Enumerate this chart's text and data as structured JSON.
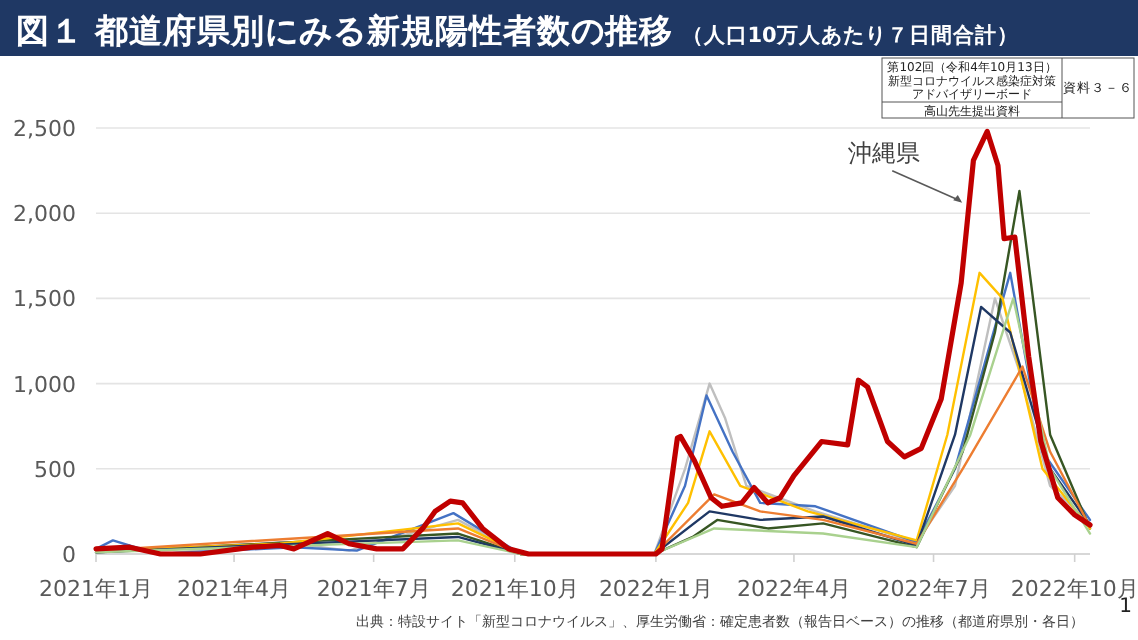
{
  "chart_data": {
    "type": "line",
    "title": "図１ 都道府県別にみる新規陽性者数の推移",
    "subtitle": "（人口10万人あたり７日間合計）",
    "xlim": [
      "2021-01-01",
      "2022-10-11"
    ],
    "ylim": [
      0,
      2500
    ],
    "xticks": [
      {
        "value": "2021-01-01",
        "label": "2021年1月"
      },
      {
        "value": "2021-04-01",
        "label": "2021年4月"
      },
      {
        "value": "2021-07-01",
        "label": "2021年7月"
      },
      {
        "value": "2021-10-01",
        "label": "2021年10月"
      },
      {
        "value": "2022-01-01",
        "label": "2022年1月"
      },
      {
        "value": "2022-04-01",
        "label": "2022年4月"
      },
      {
        "value": "2022-07-01",
        "label": "2022年7月"
      },
      {
        "value": "2022-10-01",
        "label": "2022年10月"
      }
    ],
    "yticks": [
      0,
      {
        "value": 500,
        "label": "500"
      },
      {
        "value": 1000,
        "label": "1,000"
      },
      {
        "value": 1500,
        "label": "1,500"
      },
      {
        "value": 2000,
        "label": "2,000"
      },
      {
        "value": 2500,
        "label": "2,500"
      }
    ],
    "grid": "y",
    "series": [
      {
        "color": "#bfbfbf",
        "x": [
          "2021-01-01",
          "2021-01-20",
          "2021-02-15",
          "2021-05-01",
          "2021-06-15",
          "2021-08-25",
          "2021-10-05",
          "2021-12-31",
          "2022-01-20",
          "2022-02-05",
          "2022-02-15",
          "2022-03-01",
          "2022-04-15",
          "2022-06-20",
          "2022-07-15",
          "2022-08-10",
          "2022-08-25",
          "2022-09-15",
          "2022-10-11"
        ],
        "values": [
          20,
          40,
          0,
          70,
          20,
          200,
          0,
          0,
          500,
          1000,
          800,
          400,
          250,
          70,
          400,
          1500,
          1100,
          400,
          180
        ]
      },
      {
        "color": "#4472c4",
        "x": [
          "2021-01-01",
          "2021-01-12",
          "2021-02-10",
          "2021-05-10",
          "2021-06-20",
          "2021-08-22",
          "2021-10-05",
          "2021-12-31",
          "2022-01-20",
          "2022-02-03",
          "2022-02-20",
          "2022-03-10",
          "2022-04-15",
          "2022-06-20",
          "2022-07-15",
          "2022-08-20",
          "2022-09-10",
          "2022-10-11"
        ],
        "values": [
          30,
          80,
          0,
          40,
          20,
          240,
          0,
          0,
          400,
          930,
          600,
          300,
          280,
          70,
          500,
          1650,
          600,
          200
        ]
      },
      {
        "color": "#375623",
        "x": [
          "2021-01-01",
          "2021-08-25",
          "2021-10-05",
          "2021-12-31",
          "2022-01-25",
          "2022-02-10",
          "2022-03-15",
          "2022-04-20",
          "2022-06-20",
          "2022-07-20",
          "2022-08-10",
          "2022-08-26",
          "2022-09-15",
          "2022-10-11"
        ],
        "values": [
          10,
          120,
          0,
          0,
          100,
          200,
          150,
          180,
          40,
          600,
          1300,
          2130,
          700,
          150
        ]
      },
      {
        "color": "#ffc000",
        "x": [
          "2021-01-01",
          "2021-05-01",
          "2021-08-25",
          "2021-10-05",
          "2021-12-31",
          "2022-01-22",
          "2022-02-05",
          "2022-02-25",
          "2022-04-10",
          "2022-06-20",
          "2022-07-10",
          "2022-07-31",
          "2022-08-15",
          "2022-09-10",
          "2022-10-11"
        ],
        "values": [
          20,
          60,
          180,
          0,
          0,
          300,
          720,
          400,
          250,
          80,
          700,
          1650,
          1500,
          500,
          150
        ]
      },
      {
        "color": "#1f3864",
        "x": [
          "2021-01-01",
          "2021-08-25",
          "2021-10-05",
          "2021-12-31",
          "2022-02-05",
          "2022-03-10",
          "2022-04-20",
          "2022-06-20",
          "2022-07-15",
          "2022-08-01",
          "2022-08-20",
          "2022-09-15",
          "2022-10-11"
        ],
        "values": [
          10,
          100,
          0,
          0,
          250,
          200,
          220,
          50,
          700,
          1450,
          1300,
          500,
          170
        ]
      },
      {
        "color": "#ed7d31",
        "x": [
          "2021-01-01",
          "2021-08-25",
          "2021-10-05",
          "2021-12-31",
          "2022-02-08",
          "2022-03-10",
          "2022-04-20",
          "2022-06-20",
          "2022-07-20",
          "2022-08-28",
          "2022-09-15",
          "2022-10-11"
        ],
        "values": [
          20,
          150,
          0,
          0,
          350,
          250,
          200,
          60,
          500,
          1100,
          600,
          160
        ]
      },
      {
        "color": "#a9d18e",
        "x": [
          "2021-01-01",
          "2021-08-25",
          "2021-10-05",
          "2021-12-31",
          "2022-02-08",
          "2022-04-20",
          "2022-06-20",
          "2022-07-25",
          "2022-08-22",
          "2022-09-15",
          "2022-10-11"
        ],
        "values": [
          10,
          80,
          0,
          0,
          150,
          120,
          40,
          700,
          1500,
          500,
          120
        ]
      },
      {
        "color": "#c00000",
        "x": [
          "2021-01-01",
          "2021-01-23",
          "2021-02-12",
          "2021-03-10",
          "2021-04-13",
          "2021-05-01",
          "2021-05-10",
          "2021-06-01",
          "2021-06-15",
          "2021-07-03",
          "2021-07-20",
          "2021-08-02",
          "2021-08-10",
          "2021-08-20",
          "2021-08-28",
          "2021-09-10",
          "2021-09-27",
          "2021-10-10",
          "2022-01-01",
          "2022-01-05",
          "2022-01-15",
          "2022-01-17",
          "2022-01-26",
          "2022-02-06",
          "2022-02-13",
          "2022-02-26",
          "2022-03-06",
          "2022-03-15",
          "2022-03-23",
          "2022-04-01",
          "2022-04-19",
          "2022-05-06",
          "2022-05-13",
          "2022-05-19",
          "2022-06-01",
          "2022-06-12",
          "2022-06-23",
          "2022-07-06",
          "2022-07-19",
          "2022-07-27",
          "2022-08-05",
          "2022-08-12",
          "2022-08-16",
          "2022-08-23",
          "2022-09-01",
          "2022-09-09",
          "2022-09-20",
          "2022-10-01",
          "2022-10-11"
        ],
        "values": [
          30,
          40,
          0,
          0,
          40,
          50,
          30,
          120,
          60,
          30,
          30,
          150,
          250,
          310,
          300,
          150,
          30,
          0,
          0,
          30,
          680,
          690,
          550,
          330,
          280,
          300,
          390,
          300,
          330,
          460,
          660,
          640,
          1020,
          980,
          660,
          570,
          620,
          910,
          1590,
          2310,
          2480,
          2280,
          1850,
          1860,
          1160,
          660,
          330,
          230,
          170
        ]
      }
    ],
    "annotations": [
      "第102回（令和4年10月13日）",
      "新型コロナウイルス感染症対策",
      "アドバイザリーボード",
      "高山先生提出資料",
      "資料３－６",
      "出典：特設サイト「新型コロナウイルス」、厚生労働省：確定患者数（報告日ベース）の推移（都道府県別・各日）",
      "1",
      {
        "text": "沖縄県",
        "x": "2022-07-21",
        "y": 2050
      }
    ]
  }
}
